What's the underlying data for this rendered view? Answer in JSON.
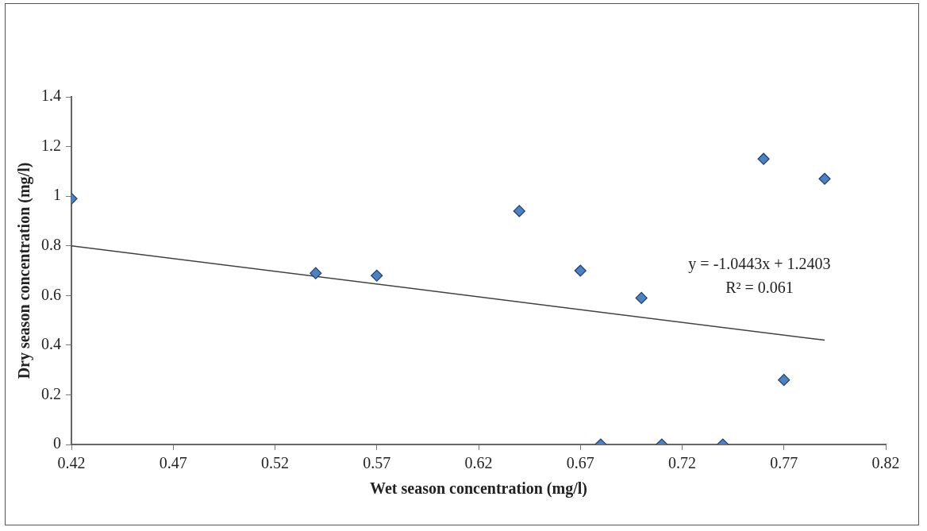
{
  "chart_data": {
    "type": "scatter",
    "xlabel": "Wet season concentration (mg/l)",
    "ylabel": "Dry season concentration (mg/l)",
    "x": [
      0.42,
      0.54,
      0.57,
      0.64,
      0.67,
      0.7,
      0.68,
      0.71,
      0.74,
      0.76,
      0.77,
      0.79
    ],
    "series": [
      {
        "color": "#4f81bd",
        "marker": "diamond",
        "values": [
          0.99,
          0.69,
          0.68,
          0.94,
          0.7,
          0.59,
          0,
          0,
          0,
          1.15,
          0.26,
          1.07
        ]
      },
      {
        "type": "line",
        "color": "#404040",
        "marker": "none",
        "x": [
          0.42,
          0.79
        ],
        "values": [
          0.8,
          0.42
        ]
      }
    ],
    "annotations": [
      "y = -1.0443x + 1.2403",
      "R² = 0.061"
    ],
    "xlim": [
      0.42,
      0.82
    ],
    "xticks": [
      0.42,
      0.47,
      0.52,
      0.57,
      0.62,
      0.67,
      0.72,
      0.77,
      0.82
    ],
    "ylim": [
      0,
      1.4
    ],
    "yticks": [
      0,
      0.2,
      0.4,
      0.6,
      0.8,
      1,
      1.2,
      1.4
    ],
    "grid": false,
    "legend": false
  }
}
